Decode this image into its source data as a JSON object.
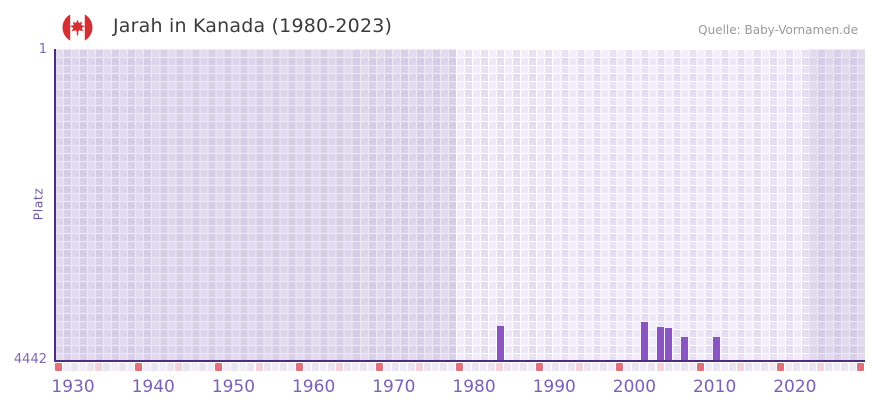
{
  "header": {
    "title": "Jarah in Kanada (1980-2023)",
    "source": "Quelle: Baby-Vornamen.de",
    "flag_icon": "canada-flag-icon"
  },
  "chart_data": {
    "type": "bar",
    "title": "Jarah in Kanada (1980-2023)",
    "xlabel": "",
    "ylabel": "Platz",
    "y_axis": {
      "top_label": "1",
      "bottom_label": "4442",
      "min": 1,
      "max": 4442,
      "inverted": true
    },
    "x_axis": {
      "domain_start": 1928,
      "domain_end": 2029,
      "tick_years": [
        1930,
        1940,
        1950,
        1960,
        1970,
        1980,
        1990,
        2000,
        2010,
        2020
      ]
    },
    "highlight_band": {
      "start_year": 1978,
      "end_year": 2022
    },
    "bars": [
      {
        "year": 1983,
        "platz": 3957
      },
      {
        "year": 2001,
        "platz": 3895
      },
      {
        "year": 2003,
        "platz": 3970
      },
      {
        "year": 2004,
        "platz": 3985
      },
      {
        "year": 2006,
        "platz": 4113
      },
      {
        "year": 2010,
        "platz": 4113
      }
    ],
    "legend": [],
    "grid": "checkered",
    "colors": {
      "bar": "#8a54c2",
      "axis": "#4b2d82",
      "tick_label": "#7a61ba",
      "y_label": "#7d6ab5",
      "shade_overlay": "rgba(109,80,157,0.12)",
      "ruler_red": "#e1707b",
      "ruler_pink": "#f3d2dc",
      "ruler_even": "#e9e3f2",
      "ruler_odd": "#f0ebf7",
      "flag_red": "#d62f33",
      "title_text": "#3b3b3b",
      "source_text": "#9a9a9a"
    }
  }
}
